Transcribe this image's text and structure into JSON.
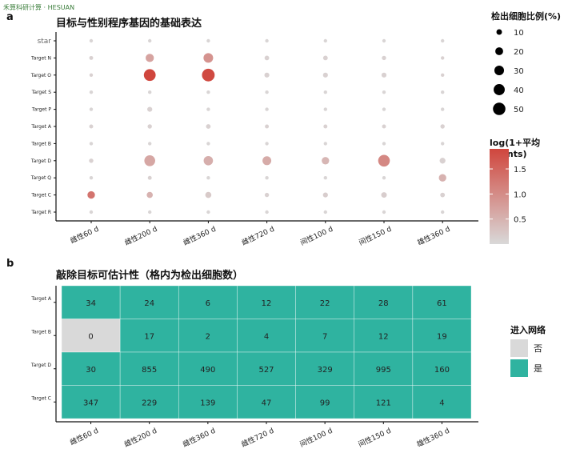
{
  "watermark": "禾算科研计算 · HESUAN",
  "panel_a": {
    "label": "a",
    "title": "目标与性别程序基因的基础表达",
    "size_legend_title": "检出细胞比例(%)",
    "size_legend_values": [
      10,
      20,
      30,
      40,
      50
    ],
    "color_legend_title": "log(1+平均counts)",
    "color_legend_ticks": [
      0.5,
      1.0,
      1.5
    ],
    "color_legend_tick_labels": [
      "0.5",
      "1.0",
      "1.5"
    ],
    "colors": {
      "low": "#d9d9d9",
      "high": "#d0463d"
    }
  },
  "panel_b": {
    "label": "b",
    "title": "敲除目标可估计性（格内为检出细胞数）",
    "legend_title": "进入网络",
    "legend_items": [
      {
        "label": "否",
        "color": "#d9d9d9"
      },
      {
        "label": "是",
        "color": "#2fb3a0"
      }
    ]
  },
  "chart_data": [
    {
      "type": "scatter",
      "title": "目标与性别程序基因的基础表达",
      "x_categories": [
        "雌性60 d",
        "雌性200 d",
        "雌性360 d",
        "雌性720 d",
        "间性100 d",
        "间性150 d",
        "雄性360 d"
      ],
      "y_categories": [
        "star",
        "Target N",
        "Target O",
        "Target S",
        "Target P",
        "Target A",
        "Target B",
        "Target D",
        "Target Q",
        "Target C",
        "Target R"
      ],
      "size_label": "检出细胞比例(%)",
      "color_label": "log(1+平均counts)",
      "color_range": [
        0,
        1.9
      ],
      "points_pct": [
        [
          3,
          3,
          3,
          3,
          3,
          3,
          3
        ],
        [
          5,
          22,
          30,
          7,
          7,
          6,
          4
        ],
        [
          4,
          45,
          52,
          8,
          8,
          8,
          4
        ],
        [
          3,
          3,
          3,
          3,
          3,
          3,
          3
        ],
        [
          3,
          8,
          3,
          3,
          3,
          3,
          3
        ],
        [
          5,
          6,
          7,
          5,
          5,
          5,
          6
        ],
        [
          3,
          3,
          3,
          3,
          3,
          3,
          3
        ],
        [
          6,
          38,
          28,
          25,
          18,
          44,
          11
        ],
        [
          3,
          5,
          3,
          3,
          3,
          3,
          18
        ],
        [
          18,
          12,
          12,
          6,
          8,
          10,
          7
        ],
        [
          3,
          3,
          3,
          3,
          3,
          3,
          3
        ]
      ],
      "points_expr": [
        [
          0.05,
          0.05,
          0.05,
          0.05,
          0.05,
          0.05,
          0.05
        ],
        [
          0.1,
          0.7,
          0.9,
          0.1,
          0.1,
          0.1,
          0.1
        ],
        [
          0.1,
          1.9,
          1.85,
          0.1,
          0.1,
          0.1,
          0.1
        ],
        [
          0.05,
          0.05,
          0.05,
          0.05,
          0.05,
          0.05,
          0.05
        ],
        [
          0.05,
          0.1,
          0.05,
          0.05,
          0.05,
          0.05,
          0.05
        ],
        [
          0.1,
          0.1,
          0.1,
          0.1,
          0.1,
          0.1,
          0.1
        ],
        [
          0.05,
          0.05,
          0.05,
          0.05,
          0.05,
          0.05,
          0.05
        ],
        [
          0.1,
          0.65,
          0.55,
          0.6,
          0.45,
          1.05,
          0.1
        ],
        [
          0.05,
          0.1,
          0.05,
          0.05,
          0.05,
          0.05,
          0.5
        ],
        [
          1.3,
          0.5,
          0.2,
          0.1,
          0.15,
          0.15,
          0.1
        ],
        [
          0.05,
          0.05,
          0.05,
          0.05,
          0.05,
          0.05,
          0.05
        ]
      ]
    },
    {
      "type": "heatmap",
      "title": "敲除目标可估计性（格内为检出细胞数）",
      "x_categories": [
        "雌性60 d",
        "雌性200 d",
        "雌性360 d",
        "雌性720 d",
        "间性100 d",
        "间性150 d",
        "雄性360 d"
      ],
      "y_categories": [
        "Target A",
        "Target B",
        "Target D",
        "Target C"
      ],
      "values": [
        [
          34,
          24,
          6,
          12,
          22,
          28,
          61
        ],
        [
          0,
          17,
          2,
          4,
          7,
          12,
          19
        ],
        [
          30,
          855,
          490,
          527,
          329,
          995,
          160
        ],
        [
          347,
          229,
          139,
          47,
          99,
          121,
          4
        ]
      ],
      "in_network": [
        [
          true,
          true,
          true,
          true,
          true,
          true,
          true
        ],
        [
          false,
          true,
          true,
          true,
          true,
          true,
          true
        ],
        [
          true,
          true,
          true,
          true,
          true,
          true,
          true
        ],
        [
          true,
          true,
          true,
          true,
          true,
          true,
          true
        ]
      ],
      "legend_title": "进入网络",
      "legend_labels": [
        "否",
        "是"
      ]
    }
  ]
}
